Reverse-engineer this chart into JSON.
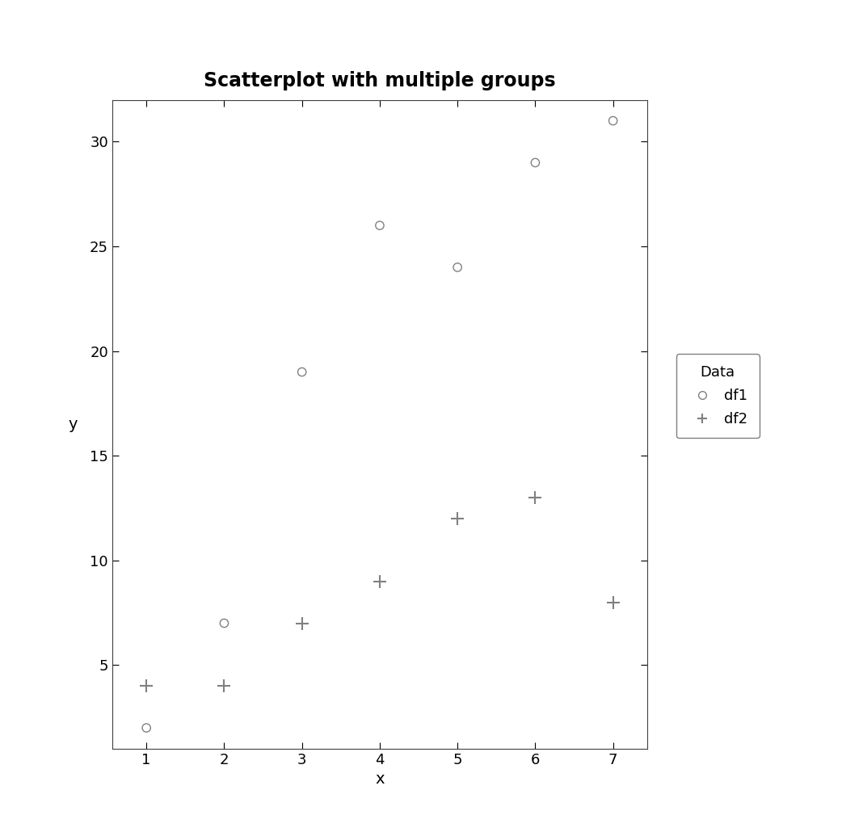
{
  "title": "Scatterplot with multiple groups",
  "xlabel": "x",
  "ylabel": "y",
  "df1_x": [
    1,
    2,
    3,
    4,
    5,
    6,
    7
  ],
  "df1_y": [
    2,
    7,
    19,
    26,
    24,
    29,
    31
  ],
  "df2_x": [
    1,
    2,
    3,
    4,
    5,
    6,
    7
  ],
  "df2_y": [
    4,
    4,
    7,
    9,
    12,
    13,
    8
  ],
  "xlim": [
    0.56,
    7.44
  ],
  "ylim": [
    1.0,
    32.0
  ],
  "xticks": [
    1,
    2,
    3,
    4,
    5,
    6,
    7
  ],
  "yticks": [
    5,
    10,
    15,
    20,
    25,
    30
  ],
  "marker_color": "#808080",
  "background_color": "#ffffff",
  "plot_bg_color": "#ffffff",
  "legend_title": "Data",
  "legend_labels": [
    "df1",
    "df2"
  ],
  "title_fontsize": 17,
  "axis_label_fontsize": 14,
  "tick_fontsize": 13,
  "legend_fontsize": 13,
  "marker_size_circle": 55,
  "marker_size_plus": 130,
  "plus_linewidth": 1.5,
  "circle_linewidth": 1.0
}
